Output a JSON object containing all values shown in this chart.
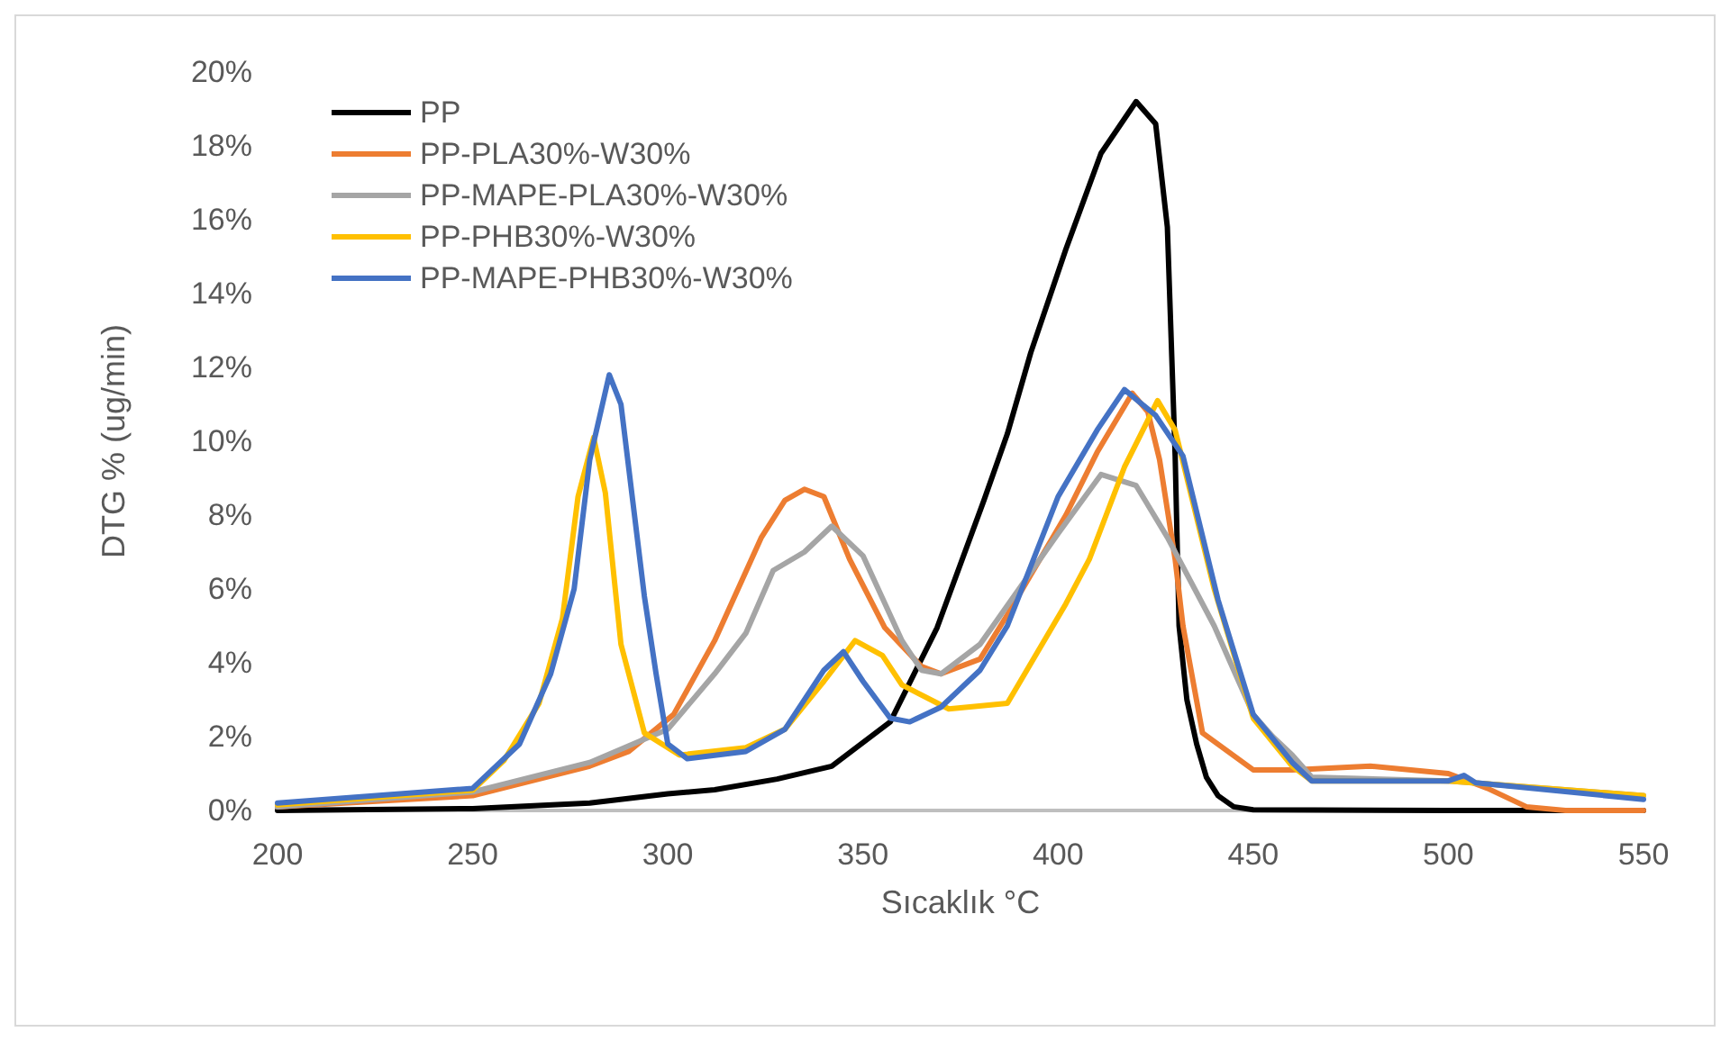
{
  "chart_data": {
    "type": "line",
    "xlabel": "Sıcaklık °C",
    "ylabel": "DTG % (ug/min)",
    "xlim": [
      200,
      550
    ],
    "xticks": [
      200,
      250,
      300,
      350,
      400,
      450,
      500,
      550
    ],
    "ylim": [
      0,
      20
    ],
    "yticks": [
      {
        "value": 0,
        "label": "0%"
      },
      {
        "value": 2,
        "label": "2%"
      },
      {
        "value": 4,
        "label": "4%"
      },
      {
        "value": 6,
        "label": "6%"
      },
      {
        "value": 8,
        "label": "8%"
      },
      {
        "value": 10,
        "label": "10%"
      },
      {
        "value": 12,
        "label": "12%"
      },
      {
        "value": 14,
        "label": "14%"
      },
      {
        "value": 16,
        "label": "16%"
      },
      {
        "value": 18,
        "label": "18%"
      },
      {
        "value": 20,
        "label": "20%"
      }
    ],
    "grid": false,
    "legend": "top left",
    "marker": "none",
    "line_style": "solid",
    "series": [
      {
        "name": "PP",
        "color": "#000000",
        "x": [
          200,
          250,
          280,
          300,
          312,
          328,
          342,
          357,
          369,
          381,
          387,
          393,
          402,
          411,
          420,
          425,
          428,
          430,
          431,
          433,
          435.5,
          438,
          441,
          445,
          450,
          500,
          550
        ],
        "values": [
          0,
          0.05,
          0.2,
          0.45,
          0.56,
          0.85,
          1.2,
          2.4,
          4.95,
          8.4,
          10.2,
          12.4,
          15.2,
          17.8,
          19.2,
          18.6,
          15.8,
          9.6,
          5,
          3,
          1.8,
          0.9,
          0.4,
          0.1,
          0.02,
          0,
          0
        ]
      },
      {
        "name": "PP-PLA30%-W30%",
        "color": "#ed7d31",
        "x": [
          200,
          250,
          280,
          290,
          301.5,
          312,
          324,
          330,
          335,
          340,
          346.6,
          355.6,
          365,
          370,
          380,
          387,
          402,
          410,
          419,
          423,
          426,
          430,
          432,
          437,
          450,
          460,
          480,
          500,
          510,
          520,
          530,
          550
        ],
        "values": [
          0.1,
          0.4,
          1.2,
          1.6,
          2.6,
          4.6,
          7.4,
          8.4,
          8.7,
          8.5,
          6.8,
          4.95,
          3.9,
          3.7,
          4.1,
          5.3,
          8.0,
          9.7,
          11.3,
          10.8,
          9.5,
          6.8,
          5.0,
          2.1,
          1.1,
          1.1,
          1.2,
          1.0,
          0.6,
          0.1,
          0,
          0
        ]
      },
      {
        "name": "PP-MAPE-PLA30%-W30%",
        "color": "#a5a5a5",
        "x": [
          200,
          250,
          280,
          300,
          312,
          320,
          327,
          335,
          342,
          350,
          360,
          365,
          370,
          380,
          390,
          400,
          411,
          420,
          428,
          435,
          440,
          445,
          450,
          455,
          460,
          465,
          500,
          550
        ],
        "values": [
          0.1,
          0.5,
          1.3,
          2.2,
          3.7,
          4.8,
          6.5,
          7.0,
          7.7,
          6.9,
          4.6,
          3.8,
          3.7,
          4.5,
          6.0,
          7.5,
          9.1,
          8.8,
          7.4,
          6.0,
          5.0,
          3.8,
          2.6,
          2.0,
          1.5,
          0.9,
          0.8,
          0.4
        ]
      },
      {
        "name": "PP-PHB30%-W30%",
        "color": "#ffc000",
        "x": [
          200,
          250,
          258,
          267,
          273,
          277,
          281,
          284,
          288,
          294,
          303,
          320,
          330,
          340,
          348,
          355,
          360,
          372,
          387,
          402,
          408,
          417,
          425.5,
          430,
          440,
          450,
          460,
          465,
          500,
          550
        ],
        "values": [
          0.15,
          0.55,
          1.35,
          2.9,
          5.2,
          8.5,
          10.1,
          8.6,
          4.5,
          2.1,
          1.5,
          1.7,
          2.2,
          3.5,
          4.6,
          4.2,
          3.4,
          2.75,
          2.9,
          5.6,
          6.8,
          9.3,
          11.1,
          10.3,
          6.0,
          2.5,
          1.2,
          0.8,
          0.8,
          0.4
        ]
      },
      {
        "name": "PP-MAPE-PHB30%-W30%",
        "color": "#4472c4",
        "x": [
          200,
          250,
          262,
          270,
          276,
          280,
          285,
          288,
          291,
          294,
          297,
          300,
          305,
          320,
          330,
          340,
          345,
          350,
          357,
          362,
          370,
          380,
          387,
          400,
          410,
          417,
          425,
          432,
          441,
          450,
          460,
          465,
          500,
          504,
          507,
          550
        ],
        "values": [
          0.2,
          0.6,
          1.8,
          3.7,
          6.0,
          9.5,
          11.8,
          11.0,
          8.4,
          5.8,
          3.7,
          1.8,
          1.4,
          1.6,
          2.2,
          3.8,
          4.3,
          3.5,
          2.5,
          2.4,
          2.8,
          3.8,
          5.0,
          8.5,
          10.3,
          11.4,
          10.7,
          9.6,
          5.7,
          2.6,
          1.3,
          0.8,
          0.8,
          0.95,
          0.75,
          0.3
        ]
      }
    ]
  }
}
